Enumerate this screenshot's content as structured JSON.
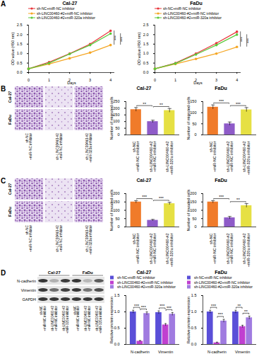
{
  "figure": {
    "panels": [
      "A",
      "B",
      "C",
      "D"
    ],
    "transwell": {
      "rows": [
        "Cal-27",
        "FaDu"
      ],
      "columns": [
        "sh-NC+miR-NC inhibitor",
        "sh-LINC00460-#2+miR-NC inhibitor",
        "sh-LINC00460-#2+miR-320a inhibitor"
      ]
    },
    "western_blot": {
      "cell_lines": [
        "Cal-27",
        "FaDu"
      ],
      "proteins": [
        "N-cadherin",
        "Vimentin",
        "GAPDH"
      ],
      "lanes": [
        "sh-NC+miR-NC inhibitor",
        "sh-LINC00460-#2+miR-NC inhibitor",
        "sh-LINC00460-#2+miR-320a inhibitor"
      ]
    }
  },
  "chart_data": [
    {
      "type": "line",
      "title": "Cal-27",
      "x_label": "Days",
      "y_label": "OD value (450 nm)",
      "x": [
        0,
        1,
        2,
        3,
        4
      ],
      "xlim": [
        0,
        4.2
      ],
      "xticks": [
        0,
        1,
        2,
        3,
        4
      ],
      "ylim": [
        0,
        2.5
      ],
      "yticks": [
        {
          "value": 0,
          "label": "0.0"
        },
        {
          "value": 0.5,
          "label": "0.5"
        },
        {
          "value": 1,
          "label": "1.0"
        },
        {
          "value": 1.5,
          "label": "1.5"
        },
        {
          "value": 2,
          "label": "2.0"
        },
        {
          "value": 2.5,
          "label": "2.5"
        }
      ],
      "marker": "circle",
      "legend": "top",
      "series": [
        {
          "name": "sh-NC+miR-NC inhibitor",
          "color": "#e8343a",
          "values": [
            0.2,
            0.55,
            1.0,
            1.5,
            2.2
          ]
        },
        {
          "name": "sh-LINC00460-#2+miR-NC inhibitor",
          "color": "#f5a623",
          "values": [
            0.2,
            0.45,
            0.75,
            1.05,
            1.45
          ]
        },
        {
          "name": "sh-LINC00460-#2+miR-320a inhibitor",
          "color": "#5cc93b",
          "values": [
            0.2,
            0.5,
            0.98,
            1.45,
            2.05
          ]
        }
      ],
      "annotations": [
        {
          "text": "***",
          "between": [
            0,
            1
          ]
        },
        {
          "text": "***",
          "between": [
            1,
            2
          ]
        }
      ]
    },
    {
      "type": "line",
      "title": "FaDu",
      "x_label": "Days",
      "y_label": "OD value (450 nm)",
      "x": [
        0,
        1,
        2,
        3,
        4
      ],
      "xlim": [
        0,
        4.2
      ],
      "xticks": [
        0,
        1,
        2,
        3,
        4
      ],
      "ylim": [
        0,
        2.5
      ],
      "yticks": [
        {
          "value": 0,
          "label": "0.0"
        },
        {
          "value": 0.5,
          "label": "0.5"
        },
        {
          "value": 1,
          "label": "1.0"
        },
        {
          "value": 1.5,
          "label": "1.5"
        },
        {
          "value": 2,
          "label": "2.0"
        },
        {
          "value": 2.5,
          "label": "2.5"
        }
      ],
      "marker": "circle",
      "legend": "top",
      "series": [
        {
          "name": "sh-NC+miR-NC inhibitor",
          "color": "#e8343a",
          "values": [
            0.2,
            0.5,
            1.0,
            1.55,
            2.15
          ]
        },
        {
          "name": "sh-LINC00460-#2+miR-NC inhibitor",
          "color": "#f5a623",
          "values": [
            0.2,
            0.45,
            0.72,
            1.0,
            1.35
          ]
        },
        {
          "name": "sh-LINC00460-#2+miR-320a inhibitor",
          "color": "#5cc93b",
          "values": [
            0.2,
            0.48,
            0.95,
            1.45,
            2.0
          ]
        }
      ],
      "annotations": [
        {
          "text": "***",
          "between": [
            0,
            1
          ]
        },
        {
          "text": "***",
          "between": [
            1,
            2
          ]
        }
      ]
    },
    {
      "type": "bar",
      "title": "Cal-27",
      "y_label": "Number of migrated cells",
      "categories": [
        "sh-NC+miR-NC inhibitor",
        "sh-LINC00460-#2+miR-NC inhibitor",
        "sh-LINC00460-#2+miR-320a inhibitor"
      ],
      "values": [
        190,
        100,
        183
      ],
      "errors": [
        15,
        10,
        15
      ],
      "colors": [
        "#f07b2a",
        "#8e5bc8",
        "#e6e043"
      ],
      "ylim": [
        0,
        250
      ],
      "yticks": [
        0,
        50,
        100,
        150,
        200,
        250
      ],
      "annotations": [
        {
          "text": "**",
          "between": [
            0,
            1
          ]
        },
        {
          "text": "**",
          "between": [
            1,
            2
          ]
        }
      ]
    },
    {
      "type": "bar",
      "title": "FaDu",
      "y_label": "Number of migrated cells",
      "categories": [
        "sh-NC+miR-NC inhibitor",
        "sh-LINC00460-#2+miR-NC inhibitor",
        "sh-LINC00460-#2+miR-320a inhibitor"
      ],
      "values": [
        125,
        50,
        113
      ],
      "errors": [
        10,
        8,
        10
      ],
      "colors": [
        "#f07b2a",
        "#8e5bc8",
        "#e6e043"
      ],
      "ylim": [
        0,
        150
      ],
      "yticks": [
        0,
        50,
        100,
        150
      ],
      "annotations": [
        {
          "text": "***",
          "between": [
            0,
            1
          ]
        },
        {
          "text": "***",
          "between": [
            1,
            2
          ]
        }
      ]
    },
    {
      "type": "bar",
      "title": "Cal-27",
      "y_label": "Number of invaded cells",
      "categories": [
        "sh-NC+miR-NC inhibitor",
        "sh-LINC00460-#2+miR-NC inhibitor",
        "sh-LINC00460-#2+miR-320a inhibitor"
      ],
      "values": [
        150,
        40,
        140
      ],
      "errors": [
        8,
        5,
        8
      ],
      "colors": [
        "#f07b2a",
        "#8e5bc8",
        "#e6e043"
      ],
      "ylim": [
        0,
        200
      ],
      "yticks": [
        0,
        50,
        100,
        150,
        200
      ],
      "annotations": [
        {
          "text": "***",
          "between": [
            0,
            1
          ]
        },
        {
          "text": "***",
          "between": [
            1,
            2
          ]
        }
      ]
    },
    {
      "type": "bar",
      "title": "FaDu",
      "y_label": "Number of invaded cells",
      "categories": [
        "sh-NC+miR-NC inhibitor",
        "sh-LINC00460-#2+miR-NC inhibitor",
        "sh-LINC00460-#2+miR-320a inhibitor"
      ],
      "values": [
        150,
        55,
        128
      ],
      "errors": [
        8,
        8,
        12
      ],
      "colors": [
        "#f07b2a",
        "#8e5bc8",
        "#e6e043"
      ],
      "ylim": [
        0,
        200
      ],
      "yticks": [
        0,
        50,
        100,
        150,
        200
      ],
      "annotations": [
        {
          "text": "***",
          "between": [
            0,
            1
          ]
        },
        {
          "text": "**",
          "between": [
            1,
            2
          ]
        }
      ]
    },
    {
      "type": "bar",
      "title": "Cal-27",
      "y_label": "Relative protein expression",
      "categories": [
        "N-cadherin",
        "Vimentin"
      ],
      "legend": "top",
      "series": [
        {
          "name": "sh-NC+miR-NC inhibitor",
          "color": "#5a4fd8",
          "values": [
            1.0,
            0.98
          ],
          "errors": [
            0.05,
            0.05
          ]
        },
        {
          "name": "sh-LINC00460-#2+miR-NC inhibitor",
          "color": "#c040d0",
          "values": [
            0.1,
            0.6
          ],
          "errors": [
            0.02,
            0.04
          ]
        },
        {
          "name": "sh-LINC00460-#2+miR-320a inhibitor",
          "color": "#a07be0",
          "values": [
            0.95,
            0.93
          ],
          "errors": [
            0.05,
            0.05
          ]
        }
      ],
      "ylim": [
        0,
        1.5
      ],
      "yticks": [
        {
          "value": 0,
          "label": "0.0"
        },
        {
          "value": 0.5,
          "label": "0.5"
        },
        {
          "value": 1,
          "label": "1.0"
        },
        {
          "value": 1.5,
          "label": "1.5"
        }
      ],
      "annotations": [
        {
          "text": "***",
          "category": "N-cadherin",
          "between": [
            0,
            1
          ]
        },
        {
          "text": "***",
          "category": "N-cadherin",
          "between": [
            1,
            2
          ]
        },
        {
          "text": "***",
          "category": "Vimentin",
          "between": [
            0,
            1
          ]
        },
        {
          "text": "***",
          "category": "Vimentin",
          "between": [
            1,
            2
          ]
        }
      ]
    },
    {
      "type": "bar",
      "title": "FaDu",
      "y_label": "Relative protein expression",
      "categories": [
        "N-cadherin",
        "Vimentin"
      ],
      "legend": "top",
      "series": [
        {
          "name": "sh-NC+miR-NC inhibitor",
          "color": "#5a4fd8",
          "values": [
            1.0,
            1.0
          ],
          "errors": [
            0.05,
            0.05
          ]
        },
        {
          "name": "sh-LINC00460-#2+miR-NC inhibitor",
          "color": "#c040d0",
          "values": [
            0.05,
            0.55
          ],
          "errors": [
            0.02,
            0.04
          ]
        },
        {
          "name": "sh-LINC00460-#2+miR-320a inhibitor",
          "color": "#a07be0",
          "values": [
            0.72,
            0.82
          ],
          "errors": [
            0.05,
            0.05
          ]
        }
      ],
      "ylim": [
        0,
        1.5
      ],
      "yticks": [
        {
          "value": 0,
          "label": "0.0"
        },
        {
          "value": 0.5,
          "label": "0.5"
        },
        {
          "value": 1,
          "label": "1.0"
        },
        {
          "value": 1.5,
          "label": "1.5"
        }
      ],
      "annotations": [
        {
          "text": "***",
          "category": "N-cadherin",
          "between": [
            0,
            1
          ]
        },
        {
          "text": "***",
          "category": "N-cadherin",
          "between": [
            1,
            2
          ]
        },
        {
          "text": "**",
          "category": "Vimentin",
          "between": [
            0,
            1
          ]
        },
        {
          "text": "**",
          "category": "Vimentin",
          "between": [
            1,
            2
          ]
        }
      ]
    }
  ]
}
